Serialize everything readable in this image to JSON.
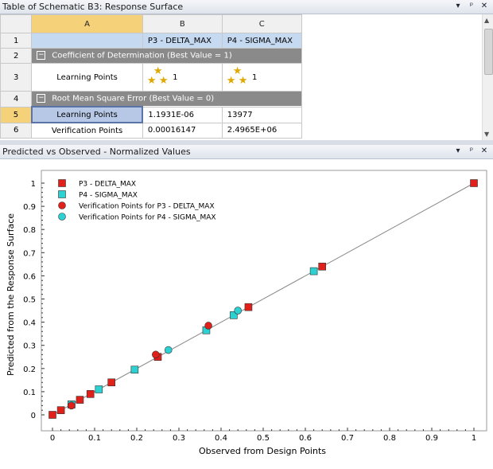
{
  "table_panel": {
    "title": "Table of Schematic B3: Response Surface",
    "pin_icon": "pin-icon",
    "close_icon": "close-icon",
    "dropdown_icon": "chevron-down-icon"
  },
  "table": {
    "columns": [
      "A",
      "B",
      "C"
    ],
    "row_numbers": [
      "1",
      "2",
      "3",
      "4",
      "5",
      "6"
    ],
    "header_row": {
      "b": "P3 - DELTA_MAX",
      "c": "P4 - SIGMA_MAX"
    },
    "group1": "Coefficient of Determination (Best Value = 1)",
    "row3": {
      "label": "Learning Points",
      "b": "1",
      "c": "1"
    },
    "group2": "Root Mean Square Error (Best Value = 0)",
    "row5": {
      "label": "Learning Points",
      "b": "1.1931E-06",
      "c": "13977"
    },
    "row6": {
      "label": "Verification Points",
      "b": "0.00016147",
      "c": "2.4965E+06"
    }
  },
  "chart_panel": {
    "title": "Predicted vs Observed - Normalized Values"
  },
  "chart_data": {
    "type": "scatter",
    "xlabel": "Observed from Design Points",
    "ylabel": "Predicted from the Response Surface",
    "xlim": [
      0,
      1
    ],
    "ylim": [
      0,
      1
    ],
    "x_ticks": [
      "0",
      "0.1",
      "0.2",
      "0.3",
      "0.4",
      "0.5",
      "0.6",
      "0.7",
      "0.8",
      "0.9",
      "1"
    ],
    "y_ticks": [
      "0",
      "0.1",
      "0.2",
      "0.3",
      "0.4",
      "0.5",
      "0.6",
      "0.7",
      "0.8",
      "0.9",
      "1"
    ],
    "grid": false,
    "legend_position": "top-left",
    "series": [
      {
        "name": "P3 - DELTA_MAX",
        "marker": "square",
        "color": "#e0201b",
        "x": [
          0,
          0.02,
          0.045,
          0.065,
          0.09,
          0.14,
          0.25,
          0.465,
          0.64,
          1
        ],
        "y": [
          0,
          0.02,
          0.045,
          0.065,
          0.09,
          0.14,
          0.25,
          0.465,
          0.64,
          1
        ]
      },
      {
        "name": "P4 - SIGMA_MAX",
        "marker": "square",
        "color": "#2dd1d1",
        "x": [
          0.045,
          0.11,
          0.195,
          0.365,
          0.43,
          0.62
        ],
        "y": [
          0.045,
          0.11,
          0.195,
          0.365,
          0.43,
          0.62
        ]
      },
      {
        "name": "Verification Points for P3 - DELTA_MAX",
        "marker": "circle",
        "color": "#e0201b",
        "x": [
          0.045,
          0.245,
          0.37
        ],
        "y": [
          0.04,
          0.26,
          0.385
        ]
      },
      {
        "name": "Verification Points for P4 - SIGMA_MAX",
        "marker": "circle",
        "color": "#2dd1d1",
        "x": [
          0.275,
          0.44
        ],
        "y": [
          0.28,
          0.45
        ]
      }
    ]
  }
}
